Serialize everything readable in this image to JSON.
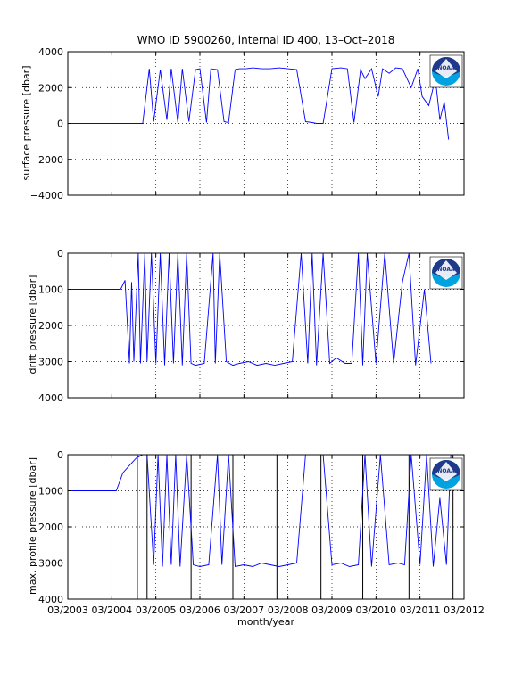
{
  "title": "WMO ID 5900260, internal ID 400, 13–Oct–2018",
  "xlabel": "month/year",
  "logo_text": "NOAA",
  "colors": {
    "line": "#0000ff",
    "axis": "#000000",
    "grid": "#000000",
    "logo_blue": "#00a3e0",
    "logo_navy": "#1f3a8a"
  },
  "chart_data": [
    {
      "type": "line",
      "ylabel": "surface pressure [dbar]",
      "ylim": [
        -4000,
        4000
      ],
      "y_reversed": false,
      "yticks": [
        "4000",
        "2000",
        "0",
        "−2000",
        "−4000"
      ],
      "ytick_values": [
        4000,
        2000,
        0,
        -2000,
        -4000
      ],
      "grid": true,
      "x": [
        2003.2,
        2004.9,
        2005.05,
        2005.15,
        2005.3,
        2005.45,
        2005.55,
        2005.7,
        2005.8,
        2005.95,
        2006.1,
        2006.2,
        2006.35,
        2006.45,
        2006.6,
        2006.75,
        2006.85,
        2007.0,
        2007.1,
        2007.25,
        2007.4,
        2007.6,
        2007.8,
        2008.0,
        2008.2,
        2008.4,
        2008.6,
        2008.75,
        2008.85,
        2009.0,
        2009.2,
        2009.4,
        2009.55,
        2009.7,
        2009.85,
        2009.95,
        2010.1,
        2010.25,
        2010.35,
        2010.5,
        2010.65,
        2010.8,
        2011.0,
        2011.15,
        2011.25,
        2011.4,
        2011.55,
        2011.65,
        2011.75,
        2011.85
      ],
      "values": [
        0,
        0,
        3050,
        100,
        3000,
        200,
        3050,
        50,
        3050,
        100,
        3000,
        3050,
        50,
        3050,
        3000,
        100,
        50,
        3000,
        3050,
        3050,
        3100,
        3050,
        3050,
        3100,
        3050,
        3000,
        100,
        50,
        0,
        0,
        3050,
        3100,
        3050,
        50,
        3000,
        2500,
        3050,
        1500,
        3050,
        2800,
        3100,
        3050,
        2000,
        3050,
        1500,
        1000,
        2500,
        200,
        1200,
        -900
      ],
      "xlim": [
        2003.2,
        2012.2
      ],
      "xticks": [
        "03/2003",
        "03/2004",
        "03/2005",
        "03/2006",
        "03/2007",
        "03/2008",
        "03/2009",
        "03/2010",
        "03/2011",
        "03/2012"
      ],
      "xtick_values": [
        2003.2,
        2004.2,
        2005.2,
        2006.2,
        2007.2,
        2008.2,
        2009.2,
        2010.2,
        2011.2,
        2012.2
      ]
    },
    {
      "type": "line",
      "ylabel": "drift pressure [dbar]",
      "ylim": [
        0,
        4000
      ],
      "y_reversed": true,
      "yticks": [
        "0",
        "1000",
        "2000",
        "3000",
        "4000"
      ],
      "ytick_values": [
        0,
        1000,
        2000,
        3000,
        4000
      ],
      "grid": true,
      "x": [
        2003.2,
        2004.4,
        2004.5,
        2004.6,
        2004.65,
        2004.7,
        2004.8,
        2004.85,
        2004.95,
        2005.0,
        2005.1,
        2005.2,
        2005.3,
        2005.4,
        2005.5,
        2005.6,
        2005.7,
        2005.8,
        2005.9,
        2006.0,
        2006.1,
        2006.3,
        2006.5,
        2006.55,
        2006.65,
        2006.8,
        2006.95,
        2007.1,
        2007.3,
        2007.5,
        2007.7,
        2007.9,
        2008.1,
        2008.3,
        2008.5,
        2008.65,
        2008.75,
        2008.85,
        2009.0,
        2009.15,
        2009.3,
        2009.5,
        2009.65,
        2009.8,
        2009.9,
        2010.0,
        2010.2,
        2010.4,
        2010.6,
        2010.8,
        2010.95,
        2011.1,
        2011.3,
        2011.45
      ],
      "values": [
        1000,
        1000,
        750,
        3050,
        800,
        3000,
        0,
        3050,
        0,
        3000,
        0,
        3050,
        0,
        3100,
        0,
        3050,
        0,
        3100,
        0,
        3050,
        3100,
        3050,
        0,
        3050,
        0,
        3000,
        3100,
        3050,
        3000,
        3100,
        3050,
        3100,
        3050,
        3000,
        0,
        3050,
        0,
        3100,
        0,
        3050,
        2900,
        3050,
        3050,
        0,
        3100,
        0,
        3050,
        0,
        3050,
        800,
        0,
        3100,
        1000,
        3050
      ],
      "xlim": [
        2003.2,
        2012.2
      ],
      "xticks": [
        "03/2003",
        "03/2004",
        "03/2005",
        "03/2006",
        "03/2007",
        "03/2008",
        "03/2009",
        "03/2010",
        "03/2011",
        "03/2012"
      ],
      "xtick_values": [
        2003.2,
        2004.2,
        2005.2,
        2006.2,
        2007.2,
        2008.2,
        2009.2,
        2010.2,
        2011.2,
        2012.2
      ]
    },
    {
      "type": "line",
      "ylabel": "max. profile pressure [dbar]",
      "ylim": [
        0,
        4000
      ],
      "y_reversed": true,
      "yticks": [
        "0",
        "1000",
        "2000",
        "3000",
        "4000"
      ],
      "ytick_values": [
        0,
        1000,
        2000,
        3000,
        4000
      ],
      "grid": true,
      "x": [
        2003.2,
        2004.2,
        2004.3,
        2004.45,
        2004.6,
        2004.75,
        2004.9,
        2005.0,
        2005.15,
        2005.25,
        2005.35,
        2005.45,
        2005.55,
        2005.65,
        2005.75,
        2005.9,
        2006.05,
        2006.2,
        2006.4,
        2006.6,
        2006.7,
        2006.85,
        2007.0,
        2007.2,
        2007.4,
        2007.6,
        2007.8,
        2008.0,
        2008.2,
        2008.4,
        2008.6,
        2008.8,
        2009.0,
        2009.2,
        2009.4,
        2009.6,
        2009.8,
        2009.95,
        2010.1,
        2010.3,
        2010.5,
        2010.7,
        2010.85,
        2011.0,
        2011.2,
        2011.35,
        2011.5,
        2011.65,
        2011.8,
        2011.9
      ],
      "values": [
        1000,
        1000,
        1000,
        500,
        300,
        100,
        0,
        0,
        3050,
        0,
        3100,
        0,
        3050,
        0,
        3100,
        0,
        3050,
        3100,
        3050,
        0,
        3050,
        0,
        3100,
        3050,
        3100,
        3000,
        3050,
        3100,
        3050,
        3000,
        0,
        0,
        0,
        3050,
        3000,
        3100,
        3050,
        0,
        3100,
        0,
        3050,
        3000,
        3050,
        0,
        3050,
        0,
        3100,
        1200,
        3050,
        0
      ],
      "xlim": [
        2003.2,
        2012.2
      ],
      "xticks": [
        "03/2003",
        "03/2004",
        "03/2005",
        "03/2006",
        "03/2007",
        "03/2008",
        "03/2009",
        "03/2010",
        "03/2011",
        "03/2012"
      ],
      "xtick_values": [
        2003.2,
        2004.2,
        2005.2,
        2006.2,
        2007.2,
        2008.2,
        2009.2,
        2010.2,
        2011.2,
        2012.2
      ],
      "event_lines_x": [
        2004.78,
        2005.0,
        2006.0,
        2006.95,
        2007.95,
        2008.95,
        2009.9,
        2010.95,
        2011.95
      ]
    }
  ]
}
